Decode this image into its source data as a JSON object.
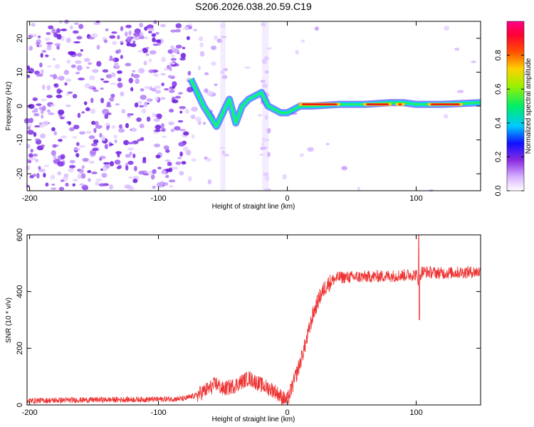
{
  "chart_data": [
    {
      "type": "heatmap",
      "title": "S206.2026.038.20.59.C19",
      "xlabel": "Height of straight line (km)",
      "ylabel": "Frequency (Hz)",
      "xlim": [
        -202,
        150
      ],
      "ylim": [
        -25,
        25
      ],
      "xticks": [
        -200,
        -100,
        0,
        100
      ],
      "yticks": [
        -20,
        -10,
        0,
        10,
        20
      ],
      "colorbar": {
        "label": "Normalized spectral amplitude",
        "range": [
          0,
          1
        ],
        "ticks": [
          "0.0",
          "0.2",
          "0.4",
          "0.6",
          "0.8"
        ],
        "tick_values": [
          0.0,
          0.2,
          0.4,
          0.6,
          0.8
        ]
      },
      "ridge": {
        "x": [
          -75,
          -70,
          -65,
          -60,
          -55,
          -50,
          -45,
          -40,
          -35,
          -30,
          -25,
          -20,
          -15,
          -10,
          -5,
          0,
          5,
          10,
          20,
          40,
          60,
          80,
          90,
          100,
          120,
          150
        ],
        "y": [
          8,
          4,
          0,
          -3,
          -6,
          -2,
          2,
          -5,
          0,
          2,
          3,
          4,
          0,
          -1,
          -2,
          -2,
          -1,
          0,
          0,
          0.5,
          0.5,
          1,
          1,
          0.5,
          0.5,
          1
        ]
      }
    },
    {
      "type": "line",
      "xlabel": "Height of straight line (km)",
      "ylabel": "SNR (10 * v/v)",
      "xlim": [
        -202,
        150
      ],
      "ylim": [
        0,
        600
      ],
      "xticks": [
        -200,
        -100,
        0,
        100
      ],
      "yticks": [
        0,
        200,
        400,
        600
      ],
      "series": [
        {
          "name": "SNR",
          "color": "#ee3333",
          "x": [
            -202,
            -150,
            -100,
            -80,
            -70,
            -60,
            -55,
            -50,
            -40,
            -30,
            -20,
            -10,
            -5,
            0,
            5,
            10,
            15,
            20,
            25,
            30,
            35,
            40,
            60,
            80,
            100,
            102,
            104,
            120,
            150
          ],
          "y": [
            15,
            18,
            20,
            22,
            35,
            60,
            75,
            55,
            70,
            95,
            70,
            50,
            30,
            15,
            80,
            150,
            230,
            320,
            380,
            420,
            440,
            450,
            452,
            455,
            460,
            430,
            470,
            465,
            470
          ]
        }
      ]
    }
  ]
}
